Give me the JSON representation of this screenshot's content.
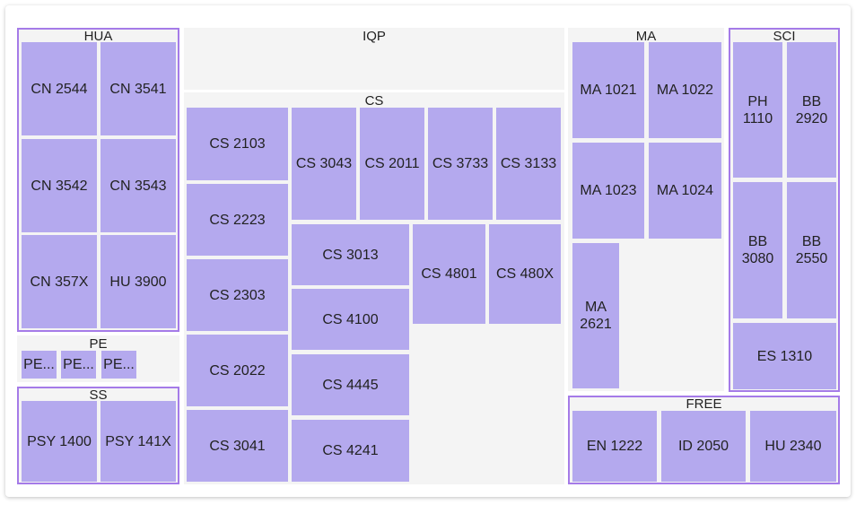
{
  "groups": [
    {
      "label": "HUA",
      "items": [
        "CN 2544",
        "CN 3541",
        "CN 3542",
        "CN 3543",
        "CN 357X",
        "HU 3900"
      ]
    },
    {
      "label": "IQP",
      "items": []
    },
    {
      "label": "CS",
      "items": [
        "CS 2103",
        "CS 2223",
        "CS 2303",
        "CS 2022",
        "CS 3041",
        "CS 3043",
        "CS 2011",
        "CS 3733",
        "CS 3133",
        "CS 3013",
        "CS 4100",
        "CS 4445",
        "CS 4241",
        "CS 4801",
        "CS 480X"
      ]
    },
    {
      "label": "MA",
      "items": [
        "MA 1021",
        "MA 1022",
        "MA 1023",
        "MA 1024",
        "MA 2621"
      ]
    },
    {
      "label": "SCI",
      "items": [
        "PH 1110",
        "BB 2920",
        "BB 3080",
        "BB 2550",
        "ES 1310"
      ]
    },
    {
      "label": "PE",
      "items": [
        "PE...",
        "PE...",
        "PE..."
      ]
    },
    {
      "label": "SS",
      "items": [
        "PSY 1400",
        "PSY 141X"
      ]
    },
    {
      "label": "FREE",
      "items": [
        "EN 1222",
        "ID 2050",
        "HU 2340"
      ]
    }
  ]
}
